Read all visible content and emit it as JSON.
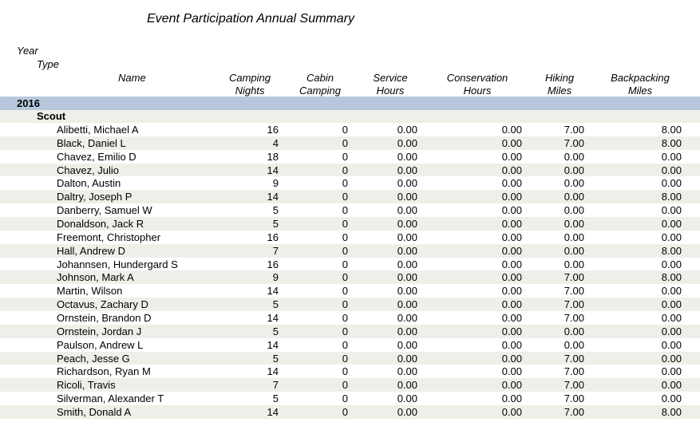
{
  "report": {
    "title": "Event Participation Annual Summary"
  },
  "headers": {
    "year": "Year",
    "type": "Type",
    "name": "Name",
    "camping_nights": [
      "Camping",
      "Nights"
    ],
    "cabin_camping": [
      "Cabin",
      "Camping"
    ],
    "service_hours": [
      "Service",
      "Hours"
    ],
    "conservation_hours": [
      "Conservation",
      "Hours"
    ],
    "hiking_miles": [
      "Hiking",
      "Miles"
    ],
    "backpacking_miles": [
      "Backpacking",
      "Miles"
    ]
  },
  "group": {
    "year": "2016",
    "type": "Scout"
  },
  "rows": [
    {
      "name": "Alibetti, Michael A",
      "camping_nights": "16",
      "cabin_camping": "0",
      "service_hours": "0.00",
      "conservation_hours": "0.00",
      "hiking_miles": "7.00",
      "backpacking_miles": "8.00"
    },
    {
      "name": "Black, Daniel L",
      "camping_nights": "4",
      "cabin_camping": "0",
      "service_hours": "0.00",
      "conservation_hours": "0.00",
      "hiking_miles": "7.00",
      "backpacking_miles": "8.00"
    },
    {
      "name": "Chavez, Emilio D",
      "camping_nights": "18",
      "cabin_camping": "0",
      "service_hours": "0.00",
      "conservation_hours": "0.00",
      "hiking_miles": "0.00",
      "backpacking_miles": "0.00"
    },
    {
      "name": "Chavez, Julio",
      "camping_nights": "14",
      "cabin_camping": "0",
      "service_hours": "0.00",
      "conservation_hours": "0.00",
      "hiking_miles": "0.00",
      "backpacking_miles": "0.00"
    },
    {
      "name": "Dalton, Austin",
      "camping_nights": "9",
      "cabin_camping": "0",
      "service_hours": "0.00",
      "conservation_hours": "0.00",
      "hiking_miles": "0.00",
      "backpacking_miles": "0.00"
    },
    {
      "name": "Daltry, Joseph P",
      "camping_nights": "14",
      "cabin_camping": "0",
      "service_hours": "0.00",
      "conservation_hours": "0.00",
      "hiking_miles": "0.00",
      "backpacking_miles": "8.00"
    },
    {
      "name": "Danberry, Samuel W",
      "camping_nights": "5",
      "cabin_camping": "0",
      "service_hours": "0.00",
      "conservation_hours": "0.00",
      "hiking_miles": "0.00",
      "backpacking_miles": "0.00"
    },
    {
      "name": "Donaldson, Jack R",
      "camping_nights": "5",
      "cabin_camping": "0",
      "service_hours": "0.00",
      "conservation_hours": "0.00",
      "hiking_miles": "0.00",
      "backpacking_miles": "0.00"
    },
    {
      "name": "Freemont, Christopher",
      "camping_nights": "16",
      "cabin_camping": "0",
      "service_hours": "0.00",
      "conservation_hours": "0.00",
      "hiking_miles": "0.00",
      "backpacking_miles": "0.00"
    },
    {
      "name": "Hall, Andrew D",
      "camping_nights": "7",
      "cabin_camping": "0",
      "service_hours": "0.00",
      "conservation_hours": "0.00",
      "hiking_miles": "0.00",
      "backpacking_miles": "8.00"
    },
    {
      "name": "Johannsen, Hundergard S",
      "camping_nights": "16",
      "cabin_camping": "0",
      "service_hours": "0.00",
      "conservation_hours": "0.00",
      "hiking_miles": "0.00",
      "backpacking_miles": "0.00"
    },
    {
      "name": "Johnson, Mark A",
      "camping_nights": "9",
      "cabin_camping": "0",
      "service_hours": "0.00",
      "conservation_hours": "0.00",
      "hiking_miles": "7.00",
      "backpacking_miles": "8.00"
    },
    {
      "name": "Martin, Wilson",
      "camping_nights": "14",
      "cabin_camping": "0",
      "service_hours": "0.00",
      "conservation_hours": "0.00",
      "hiking_miles": "7.00",
      "backpacking_miles": "0.00"
    },
    {
      "name": "Octavus, Zachary D",
      "camping_nights": "5",
      "cabin_camping": "0",
      "service_hours": "0.00",
      "conservation_hours": "0.00",
      "hiking_miles": "7.00",
      "backpacking_miles": "0.00"
    },
    {
      "name": "Ornstein, Brandon D",
      "camping_nights": "14",
      "cabin_camping": "0",
      "service_hours": "0.00",
      "conservation_hours": "0.00",
      "hiking_miles": "7.00",
      "backpacking_miles": "0.00"
    },
    {
      "name": "Ornstein, Jordan J",
      "camping_nights": "5",
      "cabin_camping": "0",
      "service_hours": "0.00",
      "conservation_hours": "0.00",
      "hiking_miles": "0.00",
      "backpacking_miles": "0.00"
    },
    {
      "name": "Paulson, Andrew L",
      "camping_nights": "14",
      "cabin_camping": "0",
      "service_hours": "0.00",
      "conservation_hours": "0.00",
      "hiking_miles": "0.00",
      "backpacking_miles": "0.00"
    },
    {
      "name": "Peach, Jesse G",
      "camping_nights": "5",
      "cabin_camping": "0",
      "service_hours": "0.00",
      "conservation_hours": "0.00",
      "hiking_miles": "7.00",
      "backpacking_miles": "0.00"
    },
    {
      "name": "Richardson, Ryan M",
      "camping_nights": "14",
      "cabin_camping": "0",
      "service_hours": "0.00",
      "conservation_hours": "0.00",
      "hiking_miles": "7.00",
      "backpacking_miles": "0.00"
    },
    {
      "name": "Ricoli, Travis",
      "camping_nights": "7",
      "cabin_camping": "0",
      "service_hours": "0.00",
      "conservation_hours": "0.00",
      "hiking_miles": "7.00",
      "backpacking_miles": "0.00"
    },
    {
      "name": "Silverman, Alexander T",
      "camping_nights": "5",
      "cabin_camping": "0",
      "service_hours": "0.00",
      "conservation_hours": "0.00",
      "hiking_miles": "7.00",
      "backpacking_miles": "0.00"
    },
    {
      "name": "Smith, Donald A",
      "camping_nights": "14",
      "cabin_camping": "0",
      "service_hours": "0.00",
      "conservation_hours": "0.00",
      "hiking_miles": "7.00",
      "backpacking_miles": "8.00"
    }
  ]
}
